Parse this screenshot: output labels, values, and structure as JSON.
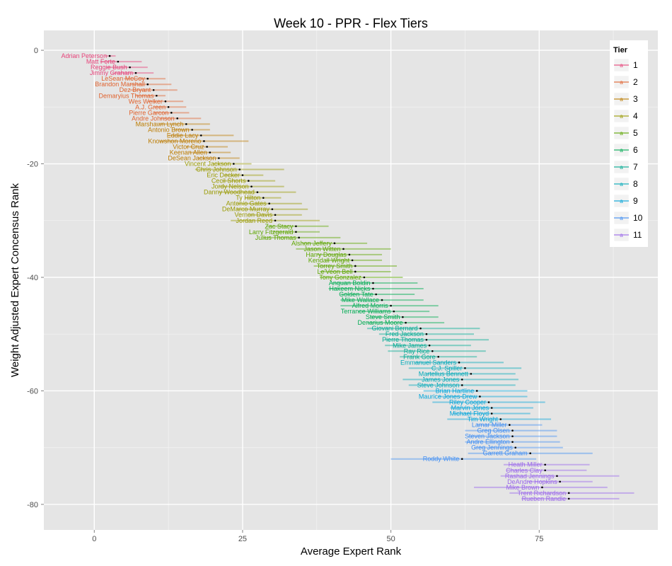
{
  "chart_data": {
    "type": "scatter",
    "title": "Week 10 - PPR - Flex Tiers",
    "xlabel": "Average Expert Rank",
    "ylabel": "Weight Adjusted Expert Concensus Rank",
    "xlim": [
      -8.5,
      95
    ],
    "ylim": [
      -84.5,
      3.5
    ],
    "x_ticks": [
      0,
      25,
      50,
      75
    ],
    "y_ticks": [
      0,
      -20,
      -40,
      -60,
      -80
    ],
    "legend": {
      "title": "Tier",
      "position": "top-right",
      "key_glyph": "a",
      "entries": [
        "1",
        "2",
        "3",
        "4",
        "5",
        "6",
        "7",
        "8",
        "9",
        "10",
        "11"
      ]
    },
    "tier_colors": [
      "#E7437A",
      "#E0622E",
      "#BC7B00",
      "#999A00",
      "#5DA600",
      "#00AC53",
      "#00AA92",
      "#00A9B8",
      "#00A4D9",
      "#3E8DF3",
      "#9A67EA"
    ],
    "players": [
      {
        "name": "Adrian Peterson",
        "rank": -1,
        "avg": 2.6,
        "lo": 1.8,
        "hi": 3.6,
        "tier": 1
      },
      {
        "name": "Matt Forte",
        "rank": -2,
        "avg": 4.0,
        "lo": 1.0,
        "hi": 8.0,
        "tier": 1
      },
      {
        "name": "Reggie Bush",
        "rank": -3,
        "avg": 6.0,
        "lo": 2.0,
        "hi": 9.0,
        "tier": 1
      },
      {
        "name": "Jimmy Graham",
        "rank": -4,
        "avg": 7.0,
        "lo": 3.0,
        "hi": 10.0,
        "tier": 1
      },
      {
        "name": "LeSean McCoy",
        "rank": -5,
        "avg": 9.0,
        "lo": 5.0,
        "hi": 12.0,
        "tier": 2
      },
      {
        "name": "Brandon Marshall",
        "rank": -6,
        "avg": 9.0,
        "lo": 6.0,
        "hi": 13.0,
        "tier": 2
      },
      {
        "name": "Dez Bryant",
        "rank": -7,
        "avg": 10.0,
        "lo": 6.0,
        "hi": 14.0,
        "tier": 2
      },
      {
        "name": "Demaryius Thomas",
        "rank": -8,
        "avg": 10.5,
        "lo": 7.0,
        "hi": 12.0,
        "tier": 2
      },
      {
        "name": "Wes Welker",
        "rank": -9,
        "avg": 12.0,
        "lo": 9.0,
        "hi": 15.0,
        "tier": 2
      },
      {
        "name": "A.J. Green",
        "rank": -10,
        "avg": 12.5,
        "lo": 10.0,
        "hi": 15.5,
        "tier": 2
      },
      {
        "name": "Pierre Garcon",
        "rank": -11,
        "avg": 13.0,
        "lo": 10.0,
        "hi": 16.0,
        "tier": 2
      },
      {
        "name": "Andre Johnson",
        "rank": -12,
        "avg": 14.0,
        "lo": 11.0,
        "hi": 18.0,
        "tier": 2
      },
      {
        "name": "Marshawn Lynch",
        "rank": -13,
        "avg": 15.5,
        "lo": 11.0,
        "hi": 19.5,
        "tier": 3
      },
      {
        "name": "Antonio Brown",
        "rank": -14,
        "avg": 16.5,
        "lo": 13.5,
        "hi": 19.5,
        "tier": 3
      },
      {
        "name": "Eddie Lacy",
        "rank": -15,
        "avg": 18.0,
        "lo": 12.5,
        "hi": 23.5,
        "tier": 3
      },
      {
        "name": "Knowshon Moreno",
        "rank": -16,
        "avg": 18.5,
        "lo": 11.0,
        "hi": 26.0,
        "tier": 3
      },
      {
        "name": "Victor Cruz",
        "rank": -17,
        "avg": 19.0,
        "lo": 15.5,
        "hi": 22.5,
        "tier": 3
      },
      {
        "name": "Keenan Allen",
        "rank": -18,
        "avg": 19.5,
        "lo": 16.0,
        "hi": 23.0,
        "tier": 3
      },
      {
        "name": "DeSean Jackson",
        "rank": -19,
        "avg": 21.0,
        "lo": 17.5,
        "hi": 24.5,
        "tier": 3
      },
      {
        "name": "Vincent Jackson",
        "rank": -20,
        "avg": 23.5,
        "lo": 20.0,
        "hi": 26.5,
        "tier": 4
      },
      {
        "name": "Chris Johnson",
        "rank": -21,
        "avg": 24.5,
        "lo": 17.0,
        "hi": 32.0,
        "tier": 4
      },
      {
        "name": "Eric Decker",
        "rank": -22,
        "avg": 25.0,
        "lo": 22.0,
        "hi": 28.5,
        "tier": 4
      },
      {
        "name": "Cecil Shorts",
        "rank": -23,
        "avg": 26.0,
        "lo": 21.5,
        "hi": 30.5,
        "tier": 4
      },
      {
        "name": "Jordy Nelson",
        "rank": -24,
        "avg": 26.5,
        "lo": 21.0,
        "hi": 32.0,
        "tier": 4
      },
      {
        "name": "Danny Woodhead",
        "rank": -25,
        "avg": 27.5,
        "lo": 21.0,
        "hi": 34.0,
        "tier": 4
      },
      {
        "name": "Ty Hilton",
        "rank": -26,
        "avg": 28.5,
        "lo": 25.5,
        "hi": 31.5,
        "tier": 4
      },
      {
        "name": "Antonio Gates",
        "rank": -27,
        "avg": 29.5,
        "lo": 24.0,
        "hi": 35.0,
        "tier": 4
      },
      {
        "name": "DeMarco Murray",
        "rank": -28,
        "avg": 30.0,
        "lo": 24.0,
        "hi": 36.0,
        "tier": 4
      },
      {
        "name": "Vernon Davis",
        "rank": -29,
        "avg": 30.5,
        "lo": 26.0,
        "hi": 35.0,
        "tier": 4
      },
      {
        "name": "Jordan Reed",
        "rank": -30,
        "avg": 30.5,
        "lo": 23.0,
        "hi": 38.0,
        "tier": 4
      },
      {
        "name": "Zac Stacy",
        "rank": -31,
        "avg": 34.0,
        "lo": 29.0,
        "hi": 39.5,
        "tier": 5
      },
      {
        "name": "Larry Fitzgerald",
        "rank": -32,
        "avg": 34.0,
        "lo": 30.0,
        "hi": 38.0,
        "tier": 5
      },
      {
        "name": "Julius Thomas",
        "rank": -33,
        "avg": 34.5,
        "lo": 28.5,
        "hi": 41.5,
        "tier": 5
      },
      {
        "name": "Alshon Jeffery",
        "rank": -34,
        "avg": 40.5,
        "lo": 35.0,
        "hi": 46.0,
        "tier": 5
      },
      {
        "name": "Jason Witten",
        "rank": -35,
        "avg": 42.0,
        "lo": 34.0,
        "hi": 50.0,
        "tier": 5
      },
      {
        "name": "Harry Douglas",
        "rank": -36,
        "avg": 43.0,
        "lo": 37.5,
        "hi": 48.5,
        "tier": 5
      },
      {
        "name": "Kendall Wright",
        "rank": -37,
        "avg": 43.5,
        "lo": 39.0,
        "hi": 48.5,
        "tier": 5
      },
      {
        "name": "Torrey Smith",
        "rank": -38,
        "avg": 44.0,
        "lo": 37.0,
        "hi": 51.0,
        "tier": 5
      },
      {
        "name": "Le'Veon Bell",
        "rank": -39,
        "avg": 44.0,
        "lo": 38.0,
        "hi": 50.0,
        "tier": 5
      },
      {
        "name": "Tony Gonzalez",
        "rank": -40,
        "avg": 45.5,
        "lo": 38.0,
        "hi": 52.0,
        "tier": 5
      },
      {
        "name": "Anquan Boldin",
        "rank": -41,
        "avg": 47.0,
        "lo": 40.0,
        "hi": 54.5,
        "tier": 6
      },
      {
        "name": "Hakeem Nicks",
        "rank": -42,
        "avg": 47.0,
        "lo": 39.5,
        "hi": 55.5,
        "tier": 6
      },
      {
        "name": "Golden Tate",
        "rank": -43,
        "avg": 47.5,
        "lo": 41.5,
        "hi": 54.0,
        "tier": 6
      },
      {
        "name": "Mike Wallace",
        "rank": -44,
        "avg": 48.5,
        "lo": 41.5,
        "hi": 55.5,
        "tier": 6
      },
      {
        "name": "Alfred Morris",
        "rank": -45,
        "avg": 50.0,
        "lo": 41.5,
        "hi": 58.0,
        "tier": 6
      },
      {
        "name": "Terrance Williams",
        "rank": -46,
        "avg": 50.5,
        "lo": 44.5,
        "hi": 56.5,
        "tier": 6
      },
      {
        "name": "Steve Smith",
        "rank": -47,
        "avg": 52.0,
        "lo": 46.5,
        "hi": 58.0,
        "tier": 6
      },
      {
        "name": "Denarius Moore",
        "rank": -48,
        "avg": 52.5,
        "lo": 46.0,
        "hi": 59.0,
        "tier": 6
      },
      {
        "name": "Giovani Bernard",
        "rank": -49,
        "avg": 55.0,
        "lo": 46.0,
        "hi": 65.0,
        "tier": 7
      },
      {
        "name": "Fred Jackson",
        "rank": -50,
        "avg": 56.0,
        "lo": 48.0,
        "hi": 64.0,
        "tier": 7
      },
      {
        "name": "Pierre Thomas",
        "rank": -51,
        "avg": 56.0,
        "lo": 49.0,
        "hi": 66.5,
        "tier": 7
      },
      {
        "name": "Mike James",
        "rank": -52,
        "avg": 56.5,
        "lo": 49.0,
        "hi": 63.5,
        "tier": 7
      },
      {
        "name": "Ray Rice",
        "rank": -53,
        "avg": 57.0,
        "lo": 49.5,
        "hi": 66.0,
        "tier": 7
      },
      {
        "name": "Frank Gore",
        "rank": -54,
        "avg": 58.0,
        "lo": 51.5,
        "hi": 64.5,
        "tier": 7
      },
      {
        "name": "Emmanuel Sanders",
        "rank": -55,
        "avg": 61.5,
        "lo": 54.0,
        "hi": 69.0,
        "tier": 8
      },
      {
        "name": "C.J. Spiller",
        "rank": -56,
        "avg": 62.5,
        "lo": 53.0,
        "hi": 72.0,
        "tier": 8
      },
      {
        "name": "Martellus Bennett",
        "rank": -57,
        "avg": 63.5,
        "lo": 56.0,
        "hi": 71.0,
        "tier": 8
      },
      {
        "name": "James Jones",
        "rank": -58,
        "avg": 62.0,
        "lo": 52.0,
        "hi": 71.5,
        "tier": 8
      },
      {
        "name": "Steve Johnson",
        "rank": -59,
        "avg": 62.0,
        "lo": 53.0,
        "hi": 71.0,
        "tier": 8
      },
      {
        "name": "Brian Hartline",
        "rank": -60,
        "avg": 64.5,
        "lo": 55.5,
        "hi": 73.0,
        "tier": 9
      },
      {
        "name": "Maurice Jones-Drew",
        "rank": -61,
        "avg": 65.0,
        "lo": 58.0,
        "hi": 73.0,
        "tier": 9
      },
      {
        "name": "Riley Cooper",
        "rank": -62,
        "avg": 66.5,
        "lo": 57.0,
        "hi": 76.0,
        "tier": 9
      },
      {
        "name": "Marvin Jones",
        "rank": -63,
        "avg": 67.0,
        "lo": 60.0,
        "hi": 74.0,
        "tier": 9
      },
      {
        "name": "Michael Floyd",
        "rank": -64,
        "avg": 67.0,
        "lo": 60.5,
        "hi": 73.5,
        "tier": 9
      },
      {
        "name": "Tim Wright",
        "rank": -65,
        "avg": 68.5,
        "lo": 59.5,
        "hi": 77.0,
        "tier": 9
      },
      {
        "name": "Lamar Miller",
        "rank": -66,
        "avg": 70.0,
        "lo": 64.5,
        "hi": 75.5,
        "tier": 10
      },
      {
        "name": "Greg Olsen",
        "rank": -67,
        "avg": 70.5,
        "lo": 62.5,
        "hi": 78.0,
        "tier": 10
      },
      {
        "name": "Steven Jackson",
        "rank": -68,
        "avg": 70.5,
        "lo": 63.0,
        "hi": 78.0,
        "tier": 10
      },
      {
        "name": "Andre Ellington",
        "rank": -69,
        "avg": 70.5,
        "lo": 62.5,
        "hi": 78.5,
        "tier": 10
      },
      {
        "name": "Greg Jennings",
        "rank": -70,
        "avg": 71.0,
        "lo": 64.0,
        "hi": 79.0,
        "tier": 10
      },
      {
        "name": "Garrett Graham",
        "rank": -71,
        "avg": 73.5,
        "lo": 63.0,
        "hi": 84.0,
        "tier": 10
      },
      {
        "name": "Roddy White",
        "rank": -72,
        "avg": 62.0,
        "lo": 50.0,
        "hi": 74.5,
        "tier": 10
      },
      {
        "name": "Heath Miller",
        "rank": -73,
        "avg": 76.0,
        "lo": 69.0,
        "hi": 83.5,
        "tier": 11
      },
      {
        "name": "Charles Clay",
        "rank": -74,
        "avg": 76.0,
        "lo": 69.5,
        "hi": 83.0,
        "tier": 11
      },
      {
        "name": "Rashad Jennings",
        "rank": -75,
        "avg": 78.0,
        "lo": 68.5,
        "hi": 88.5,
        "tier": 11
      },
      {
        "name": "DeAndre Hopkins",
        "rank": -76,
        "avg": 78.5,
        "lo": 73.0,
        "hi": 84.0,
        "tier": 11
      },
      {
        "name": "Mike Brown",
        "rank": -77,
        "avg": 75.5,
        "lo": 64.0,
        "hi": 86.5,
        "tier": 11
      },
      {
        "name": "Trent Richardson",
        "rank": -78,
        "avg": 80.0,
        "lo": 70.0,
        "hi": 91.0,
        "tier": 11
      },
      {
        "name": "Rueben Randle",
        "rank": -79,
        "avg": 80.0,
        "lo": 72.0,
        "hi": 88.5,
        "tier": 11
      }
    ]
  }
}
